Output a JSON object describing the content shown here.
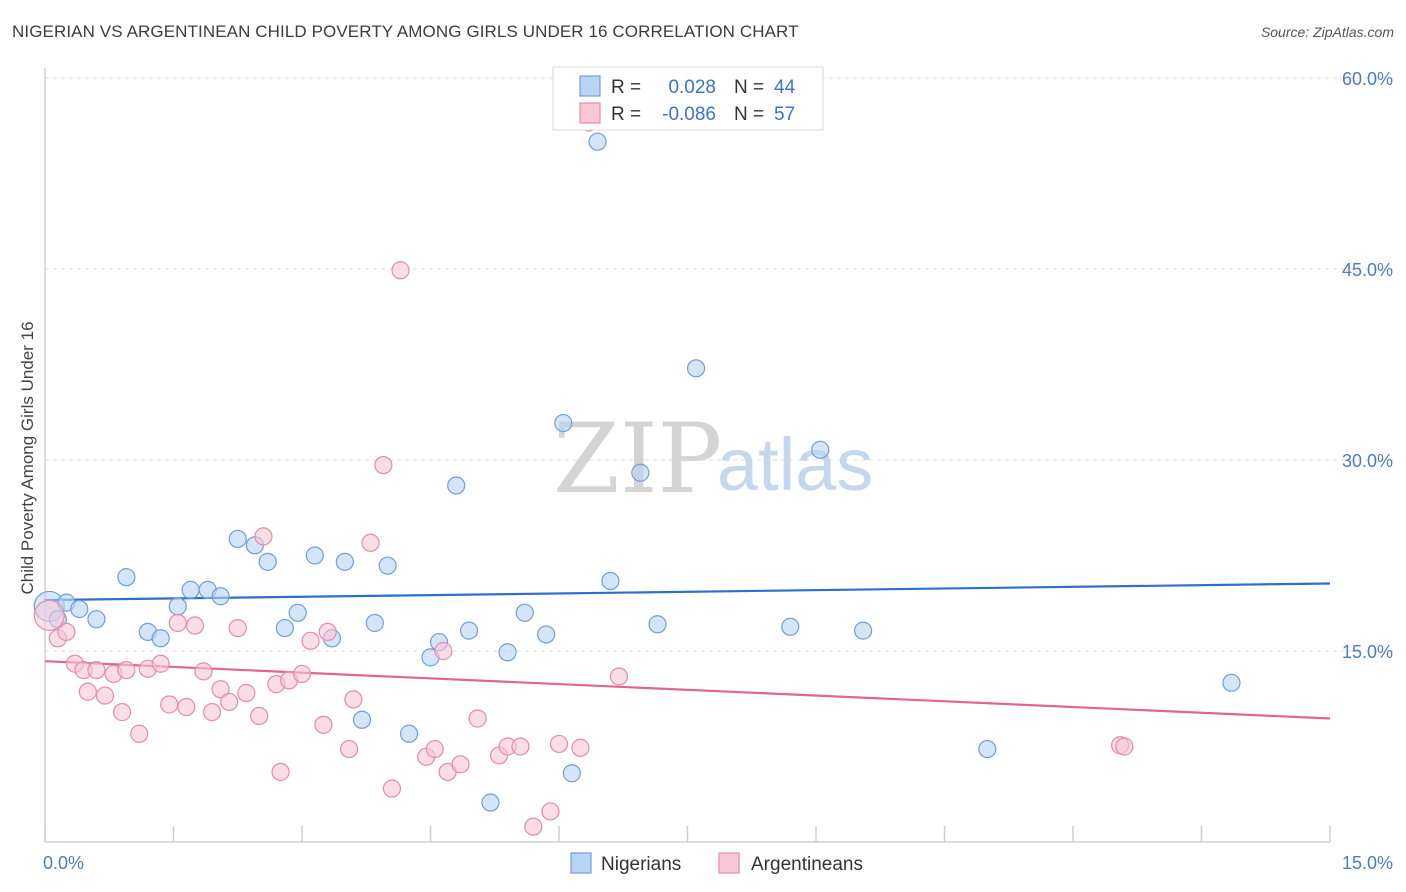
{
  "title": "NIGERIAN VS ARGENTINEAN CHILD POVERTY AMONG GIRLS UNDER 16 CORRELATION CHART",
  "source": "Source: ZipAtlas.com",
  "watermark": {
    "zip": "ZIP",
    "atlas": "atlas"
  },
  "legend": {
    "r_label": "R =",
    "n_label": "N =",
    "rows": [
      {
        "r": "0.028",
        "n": "44",
        "fill": "#b8d3f3",
        "stroke": "#6e9fdd"
      },
      {
        "r": "-0.086",
        "n": "57",
        "fill": "#f9c6d6",
        "stroke": "#e98aaa"
      }
    ]
  },
  "bottom_legend": [
    {
      "label": "Nigerians",
      "fill": "#b8d3f3",
      "stroke": "#6e9fdd"
    },
    {
      "label": "Argentineans",
      "fill": "#f9c6d6",
      "stroke": "#e98aaa"
    }
  ],
  "chart_data": {
    "type": "scatter",
    "title": "NIGERIAN VS ARGENTINEAN CHILD POVERTY AMONG GIRLS UNDER 16 CORRELATION CHART",
    "xlabel": "",
    "ylabel": "Child Poverty Among Girls Under 16",
    "xlim": [
      0,
      15
    ],
    "ylim": [
      0,
      60
    ],
    "x_tick_labels": [
      "0.0%",
      "15.0%"
    ],
    "y_tick_labels": [
      "15.0%",
      "30.0%",
      "45.0%",
      "60.0%"
    ],
    "y_ticks": [
      15,
      30,
      45,
      60
    ],
    "grid": "horizontal dashed",
    "legend_position": "top-center",
    "series": [
      {
        "name": "Nigerians",
        "color": "#6e9fdd",
        "fill": "#b8d3f3",
        "trend_color": "#2d6fcc",
        "trend": [
          [
            0,
            19.0
          ],
          [
            15,
            20.3
          ]
        ],
        "points": [
          [
            0.05,
            18.5
          ],
          [
            0.15,
            17.5
          ],
          [
            0.25,
            18.8
          ],
          [
            0.4,
            18.3
          ],
          [
            0.6,
            17.5
          ],
          [
            0.95,
            20.8
          ],
          [
            1.2,
            16.5
          ],
          [
            1.35,
            16.0
          ],
          [
            1.55,
            18.5
          ],
          [
            1.7,
            19.8
          ],
          [
            1.9,
            19.8
          ],
          [
            2.05,
            19.3
          ],
          [
            2.25,
            23.8
          ],
          [
            2.45,
            23.3
          ],
          [
            2.6,
            22.0
          ],
          [
            2.8,
            16.8
          ],
          [
            2.95,
            18.0
          ],
          [
            3.15,
            22.5
          ],
          [
            3.35,
            16.0
          ],
          [
            3.5,
            22.0
          ],
          [
            3.7,
            9.6
          ],
          [
            3.85,
            17.2
          ],
          [
            4.0,
            21.7
          ],
          [
            4.25,
            8.5
          ],
          [
            4.5,
            14.5
          ],
          [
            4.6,
            15.7
          ],
          [
            4.8,
            28.0
          ],
          [
            4.95,
            16.6
          ],
          [
            5.2,
            3.1
          ],
          [
            5.4,
            14.9
          ],
          [
            5.6,
            18.0
          ],
          [
            5.85,
            16.3
          ],
          [
            6.05,
            32.9
          ],
          [
            6.15,
            5.4
          ],
          [
            6.45,
            55.0
          ],
          [
            6.6,
            20.5
          ],
          [
            6.95,
            29.0
          ],
          [
            7.15,
            17.1
          ],
          [
            7.6,
            37.2
          ],
          [
            8.7,
            16.9
          ],
          [
            9.05,
            30.8
          ],
          [
            9.55,
            16.6
          ],
          [
            11.0,
            7.3
          ],
          [
            13.85,
            12.5
          ]
        ]
      },
      {
        "name": "Argentineans",
        "color": "#e98aaa",
        "fill": "#f9c6d6",
        "trend_color": "#e06592",
        "trend": [
          [
            0,
            14.2
          ],
          [
            15,
            9.7
          ]
        ],
        "points": [
          [
            0.05,
            17.8
          ],
          [
            0.15,
            16.0
          ],
          [
            0.25,
            16.5
          ],
          [
            0.35,
            14.0
          ],
          [
            0.45,
            13.5
          ],
          [
            0.5,
            11.8
          ],
          [
            0.6,
            13.5
          ],
          [
            0.7,
            11.5
          ],
          [
            0.8,
            13.2
          ],
          [
            0.9,
            10.2
          ],
          [
            0.95,
            13.5
          ],
          [
            1.1,
            8.5
          ],
          [
            1.2,
            13.6
          ],
          [
            1.35,
            14.0
          ],
          [
            1.45,
            10.8
          ],
          [
            1.55,
            17.2
          ],
          [
            1.65,
            10.6
          ],
          [
            1.75,
            17.0
          ],
          [
            1.85,
            13.4
          ],
          [
            1.95,
            10.2
          ],
          [
            2.05,
            12.0
          ],
          [
            2.15,
            11.0
          ],
          [
            2.25,
            16.8
          ],
          [
            2.35,
            11.7
          ],
          [
            2.5,
            9.9
          ],
          [
            2.55,
            24.0
          ],
          [
            2.7,
            12.4
          ],
          [
            2.75,
            5.5
          ],
          [
            2.85,
            12.7
          ],
          [
            3.0,
            13.2
          ],
          [
            3.1,
            15.8
          ],
          [
            3.25,
            9.2
          ],
          [
            3.3,
            16.5
          ],
          [
            3.55,
            7.3
          ],
          [
            3.6,
            11.2
          ],
          [
            3.8,
            23.5
          ],
          [
            3.95,
            29.6
          ],
          [
            4.05,
            4.2
          ],
          [
            4.15,
            44.9
          ],
          [
            4.45,
            6.7
          ],
          [
            4.55,
            7.3
          ],
          [
            4.65,
            15.0
          ],
          [
            4.7,
            5.5
          ],
          [
            4.85,
            6.1
          ],
          [
            5.05,
            9.7
          ],
          [
            5.3,
            6.8
          ],
          [
            5.4,
            7.5
          ],
          [
            5.55,
            7.5
          ],
          [
            5.7,
            1.2
          ],
          [
            5.9,
            2.4
          ],
          [
            6.0,
            7.7
          ],
          [
            6.25,
            7.4
          ],
          [
            6.35,
            56.5
          ],
          [
            6.7,
            13.0
          ],
          [
            7.5,
            57.3
          ],
          [
            12.55,
            7.6
          ],
          [
            12.6,
            7.5
          ]
        ]
      }
    ]
  }
}
